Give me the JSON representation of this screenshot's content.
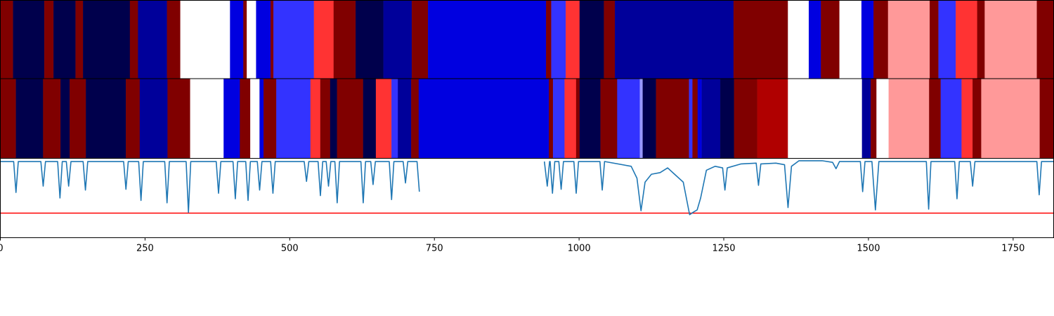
{
  "chart_data": [
    {
      "type": "bands",
      "xlim": [
        0,
        1820
      ],
      "edges": [
        0,
        22,
        76,
        92,
        130,
        143,
        224,
        238,
        288,
        311,
        397,
        420,
        426,
        442,
        467,
        472,
        542,
        576,
        614,
        662,
        711,
        739,
        943,
        952,
        977,
        1001,
        1043,
        1062,
        1267,
        1361,
        1397,
        1418,
        1450,
        1488,
        1509,
        1534,
        1606,
        1621,
        1651,
        1688,
        1701,
        1791,
        1820
      ],
      "colors": [
        "#800000",
        "#00004c",
        "#800000",
        "#00004c",
        "#800000",
        "#00004c",
        "#800000",
        "#00009a",
        "#800000",
        "#ffffff",
        "#0000e0",
        "#800000",
        "#ffffff",
        "#0000e0",
        "#800000",
        "#3333ff",
        "#ff3333",
        "#800000",
        "#00004c",
        "#00009a",
        "#800000",
        "#0000e0",
        "#800000",
        "#3333ff",
        "#ff3333",
        "#00004c",
        "#800000",
        "#00009a",
        "#800000",
        "#ffffff",
        "#0000e0",
        "#800000",
        "#ffffff",
        "#0000e0",
        "#800000",
        "#ff9999",
        "#800000",
        "#3333ff",
        "#ff3333",
        "#800000",
        "#ff9999",
        "#800000"
      ]
    },
    {
      "type": "bands",
      "xlim": [
        0,
        1820
      ],
      "edges": [
        0,
        27,
        74,
        104,
        120,
        148,
        217,
        241,
        289,
        328,
        386,
        414,
        432,
        448,
        455,
        477,
        536,
        553,
        570,
        582,
        627,
        649,
        676,
        687,
        710,
        723,
        948,
        955,
        975,
        995,
        1001,
        1037,
        1066,
        1105,
        1110,
        1133,
        1190,
        1196,
        1205,
        1212,
        1244,
        1268,
        1308,
        1361,
        1489,
        1504,
        1514,
        1535,
        1605,
        1625,
        1661,
        1680,
        1695,
        1796,
        1820
      ],
      "colors": [
        "#800000",
        "#00004c",
        "#800000",
        "#00004c",
        "#800000",
        "#00004c",
        "#800000",
        "#00009a",
        "#800000",
        "#ffffff",
        "#0000e0",
        "#800000",
        "#ffffff",
        "#0000e0",
        "#800000",
        "#3333ff",
        "#ff3333",
        "#800000",
        "#00004c",
        "#800000",
        "#00004c",
        "#ff3333",
        "#3333ff",
        "#00009a",
        "#800000",
        "#0000e0",
        "#800000",
        "#3333ff",
        "#ff3333",
        "#800000",
        "#00004c",
        "#800000",
        "#3333ff",
        "#9999ff",
        "#00004c",
        "#800000",
        "#3333ff",
        "#800000",
        "#0000e0",
        "#00009a",
        "#00004c",
        "#800000",
        "#b00000",
        "#ffffff",
        "#00009a",
        "#800000",
        "#ffffff",
        "#ff9999",
        "#800000",
        "#3333ff",
        "#ff3333",
        "#800000",
        "#ff9999",
        "#800000"
      ]
    },
    {
      "type": "line",
      "xlim": [
        0,
        1820
      ],
      "ylim": [
        0,
        1
      ],
      "xticks": [
        0,
        250,
        500,
        750,
        1000,
        1250,
        1500,
        1750
      ],
      "color": "#1f77b4",
      "hline": 0.31,
      "hline_color": "#ff0000",
      "x": [
        0,
        23,
        27,
        31,
        70,
        74,
        78,
        99,
        103,
        107,
        114,
        118,
        122,
        143,
        147,
        151,
        213,
        217,
        221,
        239,
        243,
        247,
        284,
        288,
        292,
        321,
        325,
        329,
        373,
        377,
        381,
        402,
        406,
        410,
        424,
        428,
        432,
        444,
        448,
        452,
        467,
        471,
        475,
        525,
        529,
        533,
        549,
        553,
        557,
        563,
        567,
        571,
        578,
        582,
        586,
        623,
        627,
        631,
        640,
        644,
        648,
        672,
        676,
        680,
        696,
        700,
        704,
        720,
        724,
        835,
        940,
        945,
        949,
        950,
        954,
        958,
        965,
        969,
        973,
        991,
        995,
        999,
        1036,
        1040,
        1044,
        1090,
        1100,
        1107,
        1114,
        1125,
        1140,
        1153,
        1165,
        1180,
        1191,
        1197,
        1204,
        1210,
        1220,
        1235,
        1248,
        1252,
        1256,
        1280,
        1306,
        1310,
        1314,
        1340,
        1355,
        1361,
        1367,
        1380,
        1420,
        1438,
        1444,
        1450,
        1486,
        1490,
        1494,
        1506,
        1512,
        1518,
        1560,
        1600,
        1604,
        1608,
        1649,
        1653,
        1657,
        1676,
        1680,
        1684,
        1791,
        1795,
        1799,
        1820
      ],
      "values": [
        0.96,
        0.96,
        0.57,
        0.96,
        0.96,
        0.65,
        0.96,
        0.96,
        0.5,
        0.96,
        0.96,
        0.65,
        0.96,
        0.96,
        0.6,
        0.96,
        0.96,
        0.61,
        0.96,
        0.96,
        0.47,
        0.96,
        0.96,
        0.44,
        0.96,
        0.96,
        0.32,
        0.96,
        0.96,
        0.56,
        0.96,
        0.96,
        0.49,
        0.96,
        0.96,
        0.47,
        0.96,
        0.96,
        0.6,
        0.96,
        0.96,
        0.56,
        0.96,
        0.96,
        0.71,
        0.96,
        0.96,
        0.53,
        0.96,
        0.96,
        0.65,
        0.96,
        0.96,
        0.44,
        0.96,
        0.96,
        0.44,
        0.96,
        0.96,
        0.67,
        0.96,
        0.96,
        0.48,
        0.96,
        0.96,
        0.69,
        0.96,
        0.96,
        0.58,
        null,
        0.96,
        0.65,
        0.96,
        0.96,
        0.56,
        0.96,
        0.96,
        0.61,
        0.96,
        0.96,
        0.56,
        0.96,
        0.96,
        0.6,
        0.96,
        0.9,
        0.75,
        0.34,
        0.7,
        0.8,
        0.82,
        0.88,
        0.8,
        0.7,
        0.29,
        0.32,
        0.35,
        0.5,
        0.85,
        0.9,
        0.88,
        0.6,
        0.88,
        0.93,
        0.94,
        0.66,
        0.93,
        0.94,
        0.92,
        0.38,
        0.9,
        0.97,
        0.97,
        0.95,
        0.87,
        0.96,
        0.96,
        0.58,
        0.96,
        0.96,
        0.35,
        0.96,
        0.96,
        0.96,
        0.36,
        0.96,
        0.96,
        0.49,
        0.96,
        0.96,
        0.65,
        0.96,
        0.96,
        0.54,
        0.96,
        0.96
      ]
    }
  ]
}
